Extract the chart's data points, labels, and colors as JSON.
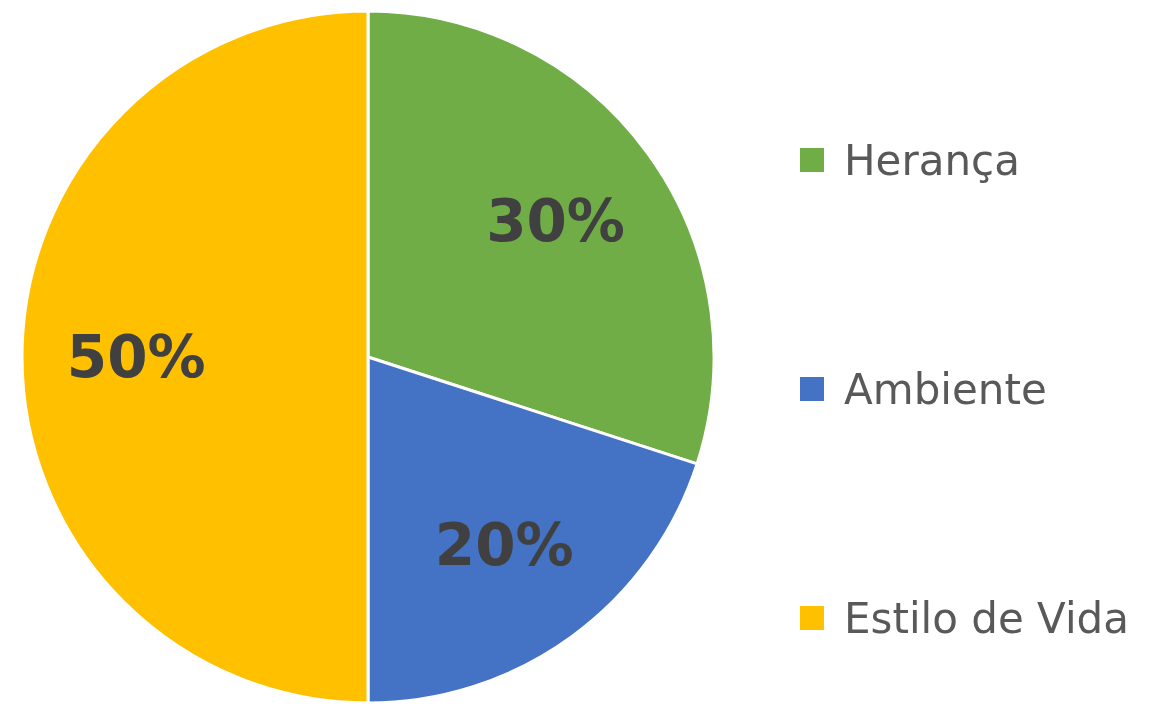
{
  "chart_data": {
    "type": "pie",
    "categories": [
      "Herança",
      "Ambiente",
      "Estilo de Vida"
    ],
    "values": [
      30,
      20,
      50
    ],
    "colors": [
      "#70ad47",
      "#4472c4",
      "#ffc000"
    ],
    "value_labels": [
      "30%",
      "20%",
      "50%"
    ],
    "legend": "right"
  }
}
